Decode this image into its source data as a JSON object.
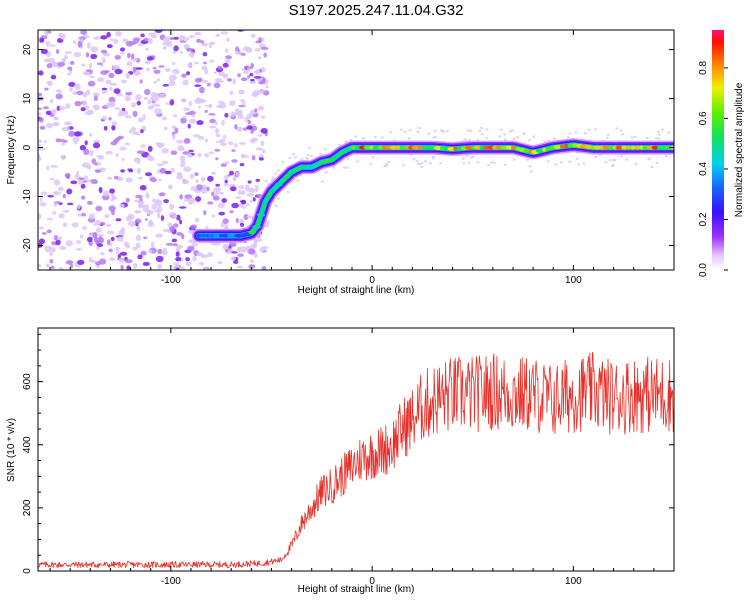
{
  "title": "S197.2025.247.11.04.G32",
  "chart_data": [
    {
      "type": "heatmap",
      "panel": "spectrogram",
      "xlabel": "Height of straight line (km)",
      "ylabel": "Frequency (Hz)",
      "xlim": [
        -166,
        150
      ],
      "ylim": [
        -25,
        24
      ],
      "xticks": [
        -100,
        0,
        100
      ],
      "yticks": [
        -20,
        -10,
        0,
        10,
        20
      ],
      "colorbar": {
        "label": "Normalized spectral amplitude",
        "range": [
          0.0,
          0.95
        ],
        "ticks": [
          0.0,
          0.2,
          0.4,
          0.6,
          0.8
        ]
      },
      "ridge": {
        "description": "dominant frequency track",
        "x": [
          -86,
          -75,
          -65,
          -60,
          -57,
          -53,
          -50,
          -45,
          -40,
          -35,
          -30,
          -25,
          -20,
          -15,
          -10,
          0,
          10,
          20,
          30,
          40,
          50,
          60,
          70,
          80,
          90,
          100,
          110,
          120,
          130,
          140,
          150
        ],
        "y": [
          -18,
          -18,
          -18,
          -17.5,
          -16,
          -11,
          -9,
          -7,
          -5,
          -4,
          -4,
          -3,
          -2.5,
          -1,
          0,
          0,
          0,
          0,
          0,
          -0.3,
          0,
          0,
          0,
          -1,
          0,
          0.5,
          0,
          0,
          0,
          0,
          0
        ]
      },
      "noise_region": {
        "x": [
          -166,
          -52
        ],
        "y": [
          -25,
          24
        ]
      }
    },
    {
      "type": "line",
      "panel": "snr",
      "xlabel": "Height of straight line (km)",
      "ylabel": "SNR (10 * v/v)",
      "xlim": [
        -166,
        150
      ],
      "ylim": [
        0,
        770
      ],
      "xticks": [
        -100,
        0,
        100
      ],
      "yticks": [
        0,
        200,
        400,
        600
      ],
      "color": "#e8302a",
      "series": [
        {
          "name": "SNR",
          "x": [
            -166,
            -150,
            -130,
            -110,
            -90,
            -70,
            -55,
            -45,
            -40,
            -35,
            -30,
            -25,
            -20,
            -15,
            -10,
            -5,
            0,
            5,
            10,
            15,
            20,
            25,
            30,
            40,
            50,
            60,
            70,
            80,
            90,
            100,
            110,
            120,
            130,
            140,
            150
          ],
          "y": [
            20,
            20,
            20,
            20,
            20,
            20,
            25,
            35,
            80,
            150,
            200,
            250,
            270,
            300,
            330,
            360,
            370,
            380,
            400,
            450,
            480,
            520,
            540,
            560,
            560,
            570,
            560,
            560,
            540,
            560,
            570,
            550,
            560,
            560,
            560
          ]
        }
      ]
    }
  ]
}
